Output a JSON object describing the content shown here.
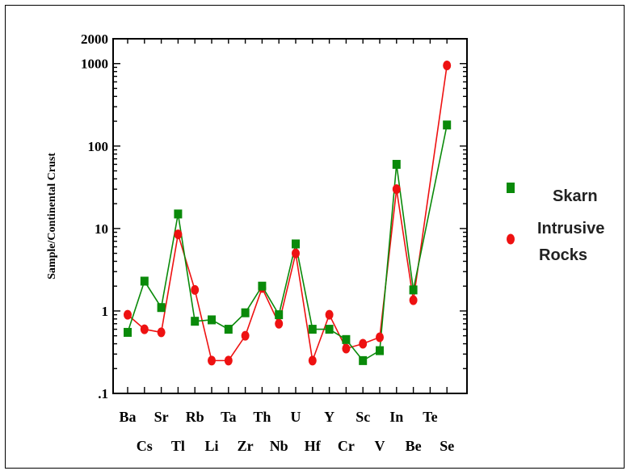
{
  "chart_data": {
    "type": "line",
    "title": "",
    "xlabel": "",
    "ylabel": "Sample/Continental Crust",
    "yscale": "log",
    "ylim": [
      0.1,
      2000
    ],
    "yticks": [
      {
        "value": 0.1,
        "label": ".1"
      },
      {
        "value": 1,
        "label": "1"
      },
      {
        "value": 10,
        "label": "10"
      },
      {
        "value": 100,
        "label": "100"
      },
      {
        "value": 1000,
        "label": "1000"
      },
      {
        "value": 2000,
        "label": "2000"
      }
    ],
    "categories": [
      "Ba",
      "Cs",
      "Sr",
      "Tl",
      "Rb",
      "Li",
      "Ta",
      "Zr",
      "Th",
      "Nb",
      "U",
      "Hf",
      "Y",
      "Cr",
      "Sc",
      "V",
      "In",
      "Be",
      "Te",
      "Se"
    ],
    "series": [
      {
        "name": "Skarn",
        "color": "#0a8a0a",
        "marker": "square",
        "values": [
          0.55,
          2.3,
          1.1,
          15,
          0.75,
          0.78,
          0.6,
          0.95,
          2.0,
          0.9,
          6.5,
          0.6,
          0.6,
          0.45,
          0.25,
          0.33,
          60,
          1.8,
          null,
          180
        ]
      },
      {
        "name": "Intrusive Rocks",
        "color": "#ee1111",
        "marker": "circle",
        "values": [
          0.9,
          0.6,
          0.55,
          8.5,
          1.8,
          0.25,
          0.25,
          0.5,
          1.9,
          0.7,
          5.0,
          0.25,
          0.9,
          0.35,
          0.4,
          0.48,
          30,
          1.35,
          null,
          950
        ]
      }
    ],
    "legend": {
      "position": "right",
      "entries": [
        {
          "label": "Skarn",
          "color": "#0a8a0a",
          "marker": "square"
        },
        {
          "label_line1": "Intrusive",
          "label_line2": "Rocks",
          "color": "#ee1111",
          "marker": "circle"
        }
      ]
    },
    "grid": false
  }
}
